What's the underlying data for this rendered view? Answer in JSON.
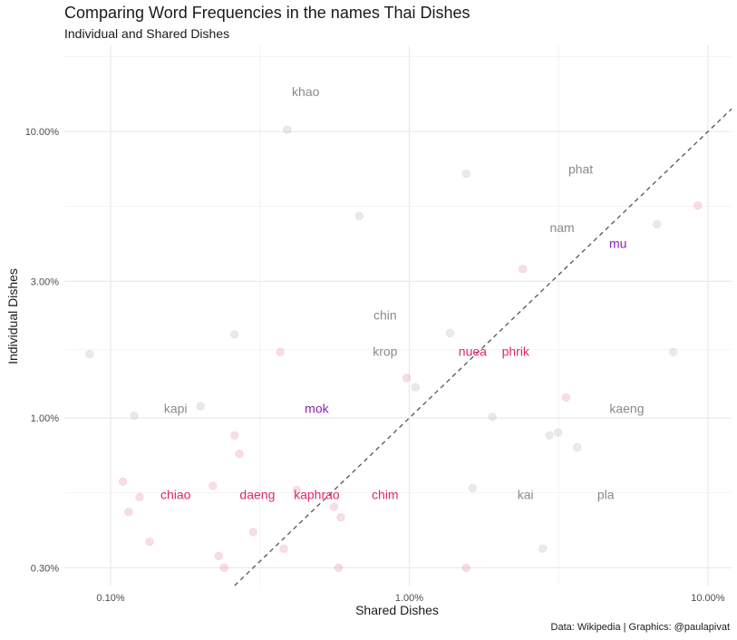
{
  "title": "Comparing Word Frequencies in the names Thai Dishes",
  "subtitle": "Individual and Shared Dishes",
  "caption": "Data: Wikipedia | Graphics: @paulapivat",
  "colors": {
    "grey": "#8a8a8a",
    "pink": "#e0256f",
    "purple": "#8b1fb8",
    "grid": "#ebebeb",
    "diag": "#555555"
  },
  "chart_data": {
    "type": "scatter",
    "xlabel": "Shared Dishes",
    "ylabel": "Individual Dishes",
    "xscale": "log",
    "yscale": "log",
    "xlim": [
      0.0007,
      0.12
    ],
    "ylim": [
      0.0026,
      0.2
    ],
    "x_ticks": [
      {
        "value": 0.001,
        "label": "0.10%"
      },
      {
        "value": 0.01,
        "label": "1.00%"
      },
      {
        "value": 0.1,
        "label": "10.00%"
      }
    ],
    "y_ticks": [
      {
        "value": 0.003,
        "label": "0.30%"
      },
      {
        "value": 0.01,
        "label": "1.00%"
      },
      {
        "value": 0.03,
        "label": "3.00%"
      },
      {
        "value": 0.1,
        "label": "10.00%"
      }
    ],
    "reference_line": "y = x (dashed)",
    "grid": true,
    "points": [
      {
        "x": 0.00085,
        "y": 0.0167,
        "color": "grey"
      },
      {
        "x": 0.0012,
        "y": 0.0102,
        "color": "grey"
      },
      {
        "x": 0.002,
        "y": 0.011,
        "color": "grey"
      },
      {
        "x": 0.0026,
        "y": 0.0196,
        "color": "grey"
      },
      {
        "x": 0.0039,
        "y": 0.1015,
        "color": "grey"
      },
      {
        "x": 0.0155,
        "y": 0.0713,
        "color": "grey"
      },
      {
        "x": 0.0068,
        "y": 0.0507,
        "color": "grey"
      },
      {
        "x": 0.0105,
        "y": 0.0128,
        "color": "grey"
      },
      {
        "x": 0.0137,
        "y": 0.0198,
        "color": "grey"
      },
      {
        "x": 0.019,
        "y": 0.0101,
        "color": "grey"
      },
      {
        "x": 0.0163,
        "y": 0.0057,
        "color": "grey"
      },
      {
        "x": 0.028,
        "y": 0.0035,
        "color": "grey"
      },
      {
        "x": 0.0295,
        "y": 0.0087,
        "color": "grey"
      },
      {
        "x": 0.0315,
        "y": 0.0089,
        "color": "grey"
      },
      {
        "x": 0.0365,
        "y": 0.0079,
        "color": "grey"
      },
      {
        "x": 0.0675,
        "y": 0.0475,
        "color": "grey"
      },
      {
        "x": 0.0765,
        "y": 0.017,
        "color": "grey"
      },
      {
        "x": 0.0011,
        "y": 0.006,
        "color": "pink"
      },
      {
        "x": 0.00115,
        "y": 0.0047,
        "color": "pink"
      },
      {
        "x": 0.00125,
        "y": 0.0053,
        "color": "pink"
      },
      {
        "x": 0.00135,
        "y": 0.0037,
        "color": "pink"
      },
      {
        "x": 0.0022,
        "y": 0.0058,
        "color": "pink"
      },
      {
        "x": 0.0023,
        "y": 0.0033,
        "color": "pink"
      },
      {
        "x": 0.0024,
        "y": 0.003,
        "color": "pink"
      },
      {
        "x": 0.0026,
        "y": 0.0087,
        "color": "pink"
      },
      {
        "x": 0.0027,
        "y": 0.0075,
        "color": "pink"
      },
      {
        "x": 0.003,
        "y": 0.004,
        "color": "pink"
      },
      {
        "x": 0.0037,
        "y": 0.017,
        "color": "pink"
      },
      {
        "x": 0.0038,
        "y": 0.0035,
        "color": "pink"
      },
      {
        "x": 0.0042,
        "y": 0.0056,
        "color": "pink"
      },
      {
        "x": 0.0056,
        "y": 0.0049,
        "color": "pink"
      },
      {
        "x": 0.0058,
        "y": 0.003,
        "color": "pink"
      },
      {
        "x": 0.0059,
        "y": 0.0045,
        "color": "pink"
      },
      {
        "x": 0.0098,
        "y": 0.0138,
        "color": "pink"
      },
      {
        "x": 0.0155,
        "y": 0.003,
        "color": "pink"
      },
      {
        "x": 0.024,
        "y": 0.0331,
        "color": "pink"
      },
      {
        "x": 0.0335,
        "y": 0.0118,
        "color": "pink"
      },
      {
        "x": 0.0925,
        "y": 0.0552,
        "color": "pink"
      }
    ],
    "labels": [
      {
        "text": "khao",
        "x": 0.0045,
        "y": 0.138,
        "color": "grey"
      },
      {
        "text": "phat",
        "x": 0.0375,
        "y": 0.074,
        "color": "grey"
      },
      {
        "text": "nam",
        "x": 0.0325,
        "y": 0.0462,
        "color": "grey"
      },
      {
        "text": "mu",
        "x": 0.05,
        "y": 0.0407,
        "color": "purple"
      },
      {
        "text": "chin",
        "x": 0.0083,
        "y": 0.0229,
        "color": "grey"
      },
      {
        "text": "krop",
        "x": 0.0083,
        "y": 0.0171,
        "color": "grey"
      },
      {
        "text": "nuea",
        "x": 0.0163,
        "y": 0.0171,
        "color": "pink"
      },
      {
        "text": "phrik",
        "x": 0.0227,
        "y": 0.0171,
        "color": "pink"
      },
      {
        "text": "kapi",
        "x": 0.00165,
        "y": 0.0108,
        "color": "grey"
      },
      {
        "text": "mok",
        "x": 0.0049,
        "y": 0.0108,
        "color": "purple"
      },
      {
        "text": "kaeng",
        "x": 0.0535,
        "y": 0.0108,
        "color": "grey"
      },
      {
        "text": "chiao",
        "x": 0.00165,
        "y": 0.0054,
        "color": "pink"
      },
      {
        "text": "daeng",
        "x": 0.0031,
        "y": 0.0054,
        "color": "pink"
      },
      {
        "text": "kaphrao",
        "x": 0.0049,
        "y": 0.0054,
        "color": "pink"
      },
      {
        "text": "chim",
        "x": 0.0083,
        "y": 0.0054,
        "color": "pink"
      },
      {
        "text": "kai",
        "x": 0.0245,
        "y": 0.0054,
        "color": "grey"
      },
      {
        "text": "pla",
        "x": 0.0455,
        "y": 0.0054,
        "color": "grey"
      }
    ]
  }
}
